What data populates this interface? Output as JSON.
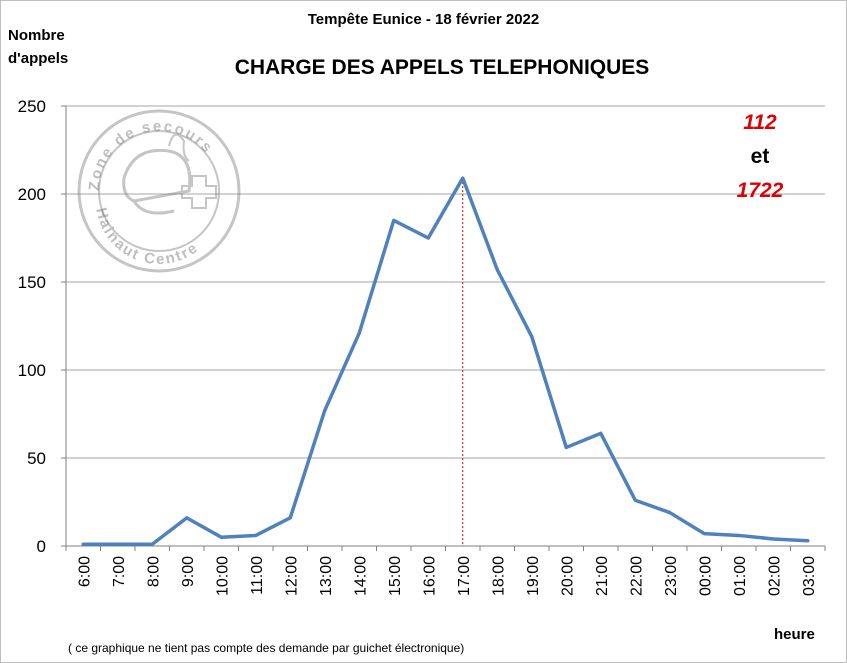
{
  "chart_data": {
    "type": "line",
    "subtitle": "Tempête Eunice - 18 février 2022",
    "title": "CHARGE DES APPELS TELEPHONIQUES",
    "ylabel_line1": "Nombre",
    "ylabel_line2": "d'appels",
    "xlabel": "heure",
    "ylim": [
      0,
      250
    ],
    "yticks": [
      0,
      50,
      100,
      150,
      200,
      250
    ],
    "categories": [
      "6:00",
      "7:00",
      "8:00",
      "9:00",
      "10:00",
      "11:00",
      "12:00",
      "13:00",
      "14:00",
      "15:00",
      "16:00",
      "17:00",
      "18:00",
      "19:00",
      "20:00",
      "21:00",
      "22:00",
      "23:00",
      "00:00",
      "01:00",
      "02:00",
      "03:00"
    ],
    "series": [
      {
        "values": [
          1,
          1,
          1,
          16,
          5,
          6,
          16,
          77,
          121,
          185,
          175,
          209,
          157,
          119,
          56,
          64,
          26,
          19,
          7,
          6,
          4,
          3
        ]
      }
    ],
    "peak_marker": {
      "category": "17:00"
    },
    "grid": true,
    "colors": {
      "line": "#4f81bd",
      "peak": "#c00000",
      "grid": "#a6a6a6"
    },
    "legend_note": {
      "line1": "112",
      "line2": "et",
      "line3": "1722"
    },
    "footnote": "( ce graphique ne tient pas compte des demande par guichet électronique)",
    "logo": {
      "text_top": "Zone de secours",
      "text_bottom": "Hainaut Centre",
      "icon": "firefighter-helmet-icon"
    }
  }
}
